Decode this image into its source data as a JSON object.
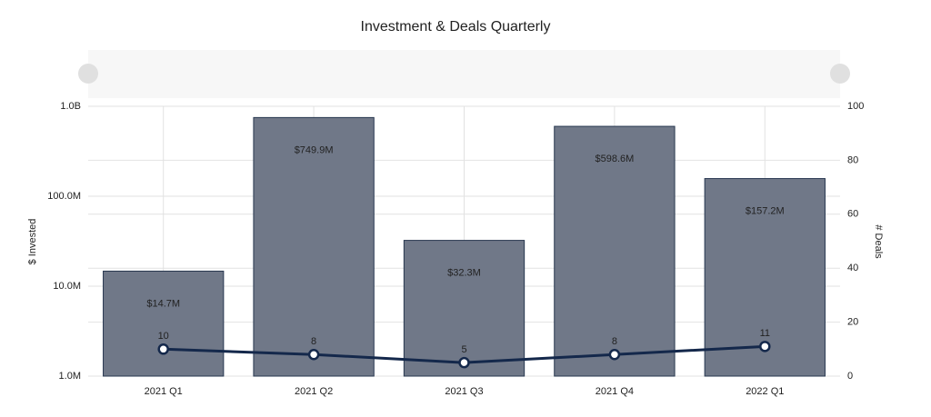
{
  "chart_data": {
    "type": "combo",
    "title": "Investment & Deals Quarterly",
    "y_label": "$ Invested",
    "y2_label": "# Deals",
    "categories": [
      "2021 Q1",
      "2021 Q2",
      "2021 Q3",
      "2021 Q4",
      "2022 Q1"
    ],
    "ylim": [
      1000000,
      1000000000
    ],
    "log_y": true,
    "yticks": [
      {
        "value": 1000000,
        "label": "1.0M"
      },
      {
        "value": 10000000,
        "label": "10.0M"
      },
      {
        "value": 100000000,
        "label": "100.0M"
      },
      {
        "value": 1000000000,
        "label": "1.0B"
      }
    ],
    "y2lim": [
      0,
      100
    ],
    "y2ticks": [
      0,
      20,
      40,
      60,
      80,
      100
    ],
    "grid": true,
    "series": [
      {
        "type": "bar",
        "color": "#707888",
        "values": [
          14700000,
          749900000,
          32300000,
          598600000,
          157200000
        ],
        "value_labels": [
          "$14.7M",
          "$749.9M",
          "$32.3M",
          "$598.6M",
          "$157.2M"
        ]
      },
      {
        "type": "line",
        "color": "#14284b",
        "axis": "y2",
        "values": [
          10,
          8,
          5,
          8,
          11
        ]
      }
    ]
  }
}
